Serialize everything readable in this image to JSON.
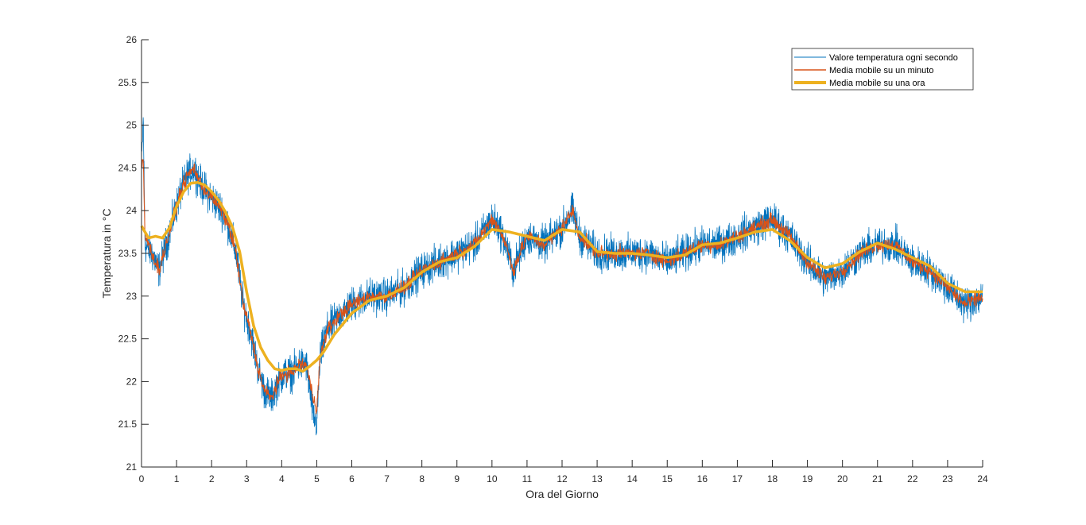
{
  "chart_data": {
    "type": "line",
    "xlabel": "Ora del Giorno",
    "ylabel": "Temperatura in °C",
    "xlim": [
      0,
      24
    ],
    "ylim": [
      21,
      26
    ],
    "xticks": [
      "0",
      "1",
      "2",
      "3",
      "4",
      "5",
      "6",
      "7",
      "8",
      "9",
      "10",
      "11",
      "12",
      "13",
      "14",
      "15",
      "16",
      "17",
      "18",
      "19",
      "20",
      "21",
      "22",
      "23",
      "24"
    ],
    "yticks": [
      "21",
      "21.5",
      "22",
      "22.5",
      "23",
      "23.5",
      "24",
      "24.5",
      "25",
      "25.5",
      "26"
    ],
    "grid": false,
    "legend_position": "top-right",
    "colors": {
      "raw": "#0072BD",
      "minute": "#D95319",
      "hour": "#EDB120",
      "axis": "#262626"
    },
    "series": [
      {
        "name": "Valore temperatura ogni secondo",
        "style": "thin",
        "noise_amplitude": 0.3,
        "x": [
          0,
          0.05,
          0.1,
          0.3,
          0.5,
          0.7,
          0.9,
          1.1,
          1.3,
          1.5,
          1.7,
          1.9,
          2.1,
          2.3,
          2.5,
          2.7,
          2.9,
          3.1,
          3.3,
          3.5,
          3.7,
          3.9,
          4.1,
          4.3,
          4.5,
          4.7,
          4.9,
          5.0,
          5.1,
          5.3,
          5.5,
          5.7,
          6,
          6.5,
          7,
          7.5,
          8,
          8.5,
          9,
          9.5,
          10,
          10.2,
          10.4,
          10.6,
          11,
          11.5,
          12,
          12.3,
          12.5,
          13,
          13.5,
          14,
          14.5,
          15,
          15.5,
          16,
          16.5,
          17,
          17.5,
          18,
          18.5,
          19,
          19.5,
          20,
          20.5,
          21,
          21.5,
          22,
          22.5,
          23,
          23.5,
          24
        ],
        "values": [
          24.5,
          25.1,
          23.6,
          23.5,
          23.3,
          23.6,
          23.9,
          24.2,
          24.4,
          24.5,
          24.3,
          24.2,
          24.1,
          24.0,
          23.8,
          23.5,
          22.9,
          22.6,
          22.2,
          21.9,
          21.8,
          22.0,
          22.1,
          22.1,
          22.2,
          22.2,
          21.6,
          21.5,
          22.3,
          22.6,
          22.7,
          22.8,
          22.9,
          23.0,
          23.0,
          23.1,
          23.3,
          23.4,
          23.5,
          23.6,
          23.9,
          23.8,
          23.6,
          23.3,
          23.7,
          23.6,
          23.8,
          24.0,
          23.7,
          23.5,
          23.5,
          23.5,
          23.5,
          23.4,
          23.5,
          23.6,
          23.6,
          23.7,
          23.8,
          23.9,
          23.7,
          23.4,
          23.2,
          23.3,
          23.5,
          23.6,
          23.6,
          23.4,
          23.3,
          23.1,
          22.9,
          23.0
        ]
      },
      {
        "name": "Media mobile su un minuto",
        "style": "medium",
        "noise_amplitude": 0.12,
        "x": [
          0,
          0.05,
          0.1,
          0.3,
          0.5,
          0.7,
          0.9,
          1.1,
          1.3,
          1.5,
          1.7,
          1.9,
          2.1,
          2.3,
          2.5,
          2.7,
          2.9,
          3.1,
          3.3,
          3.5,
          3.7,
          3.9,
          4.1,
          4.3,
          4.5,
          4.7,
          4.9,
          5.0,
          5.1,
          5.3,
          5.5,
          5.7,
          6,
          6.5,
          7,
          7.5,
          8,
          8.5,
          9,
          9.5,
          10,
          10.2,
          10.4,
          10.6,
          11,
          11.5,
          12,
          12.3,
          12.5,
          13,
          13.5,
          14,
          14.5,
          15,
          15.5,
          16,
          16.5,
          17,
          17.5,
          18,
          18.5,
          19,
          19.5,
          20,
          20.5,
          21,
          21.5,
          22,
          22.5,
          23,
          23.5,
          24
        ],
        "values": [
          24.5,
          24.6,
          23.7,
          23.5,
          23.3,
          23.6,
          23.9,
          24.2,
          24.4,
          24.5,
          24.3,
          24.2,
          24.1,
          24.0,
          23.8,
          23.5,
          22.9,
          22.6,
          22.2,
          21.9,
          21.8,
          22.0,
          22.1,
          22.1,
          22.2,
          22.2,
          21.8,
          21.7,
          22.3,
          22.6,
          22.7,
          22.8,
          22.9,
          23.0,
          23.0,
          23.1,
          23.3,
          23.4,
          23.5,
          23.6,
          23.9,
          23.8,
          23.6,
          23.3,
          23.7,
          23.6,
          23.8,
          24.0,
          23.7,
          23.5,
          23.5,
          23.5,
          23.5,
          23.4,
          23.5,
          23.6,
          23.6,
          23.7,
          23.8,
          23.9,
          23.7,
          23.4,
          23.2,
          23.3,
          23.5,
          23.6,
          23.6,
          23.4,
          23.3,
          23.1,
          22.9,
          23.0
        ]
      },
      {
        "name": "Media mobile su una ora",
        "style": "thick",
        "noise_amplitude": 0,
        "x": [
          0,
          0.2,
          0.4,
          0.6,
          0.8,
          1.0,
          1.2,
          1.4,
          1.6,
          1.8,
          2.0,
          2.2,
          2.4,
          2.6,
          2.8,
          3.0,
          3.2,
          3.4,
          3.6,
          3.8,
          4.0,
          4.2,
          4.4,
          4.6,
          4.8,
          5.0,
          5.2,
          5.5,
          6,
          6.5,
          7,
          7.5,
          8,
          8.5,
          9,
          9.5,
          10,
          10.5,
          11,
          11.5,
          12,
          12.5,
          13,
          13.5,
          14,
          14.5,
          15,
          15.5,
          16,
          16.5,
          17,
          17.5,
          18,
          18.5,
          19,
          19.5,
          20,
          20.5,
          21,
          21.5,
          22,
          22.5,
          23,
          23.5,
          24
        ],
        "values": [
          23.82,
          23.68,
          23.7,
          23.68,
          23.8,
          24.05,
          24.22,
          24.32,
          24.33,
          24.3,
          24.22,
          24.12,
          23.98,
          23.8,
          23.52,
          23.05,
          22.65,
          22.4,
          22.25,
          22.15,
          22.13,
          22.15,
          22.15,
          22.12,
          22.18,
          22.25,
          22.35,
          22.55,
          22.8,
          22.95,
          23.0,
          23.1,
          23.28,
          23.4,
          23.45,
          23.58,
          23.78,
          23.75,
          23.7,
          23.65,
          23.78,
          23.75,
          23.52,
          23.5,
          23.5,
          23.48,
          23.45,
          23.48,
          23.6,
          23.62,
          23.68,
          23.75,
          23.78,
          23.65,
          23.45,
          23.33,
          23.38,
          23.52,
          23.62,
          23.55,
          23.45,
          23.35,
          23.15,
          23.05,
          23.05
        ]
      }
    ]
  }
}
